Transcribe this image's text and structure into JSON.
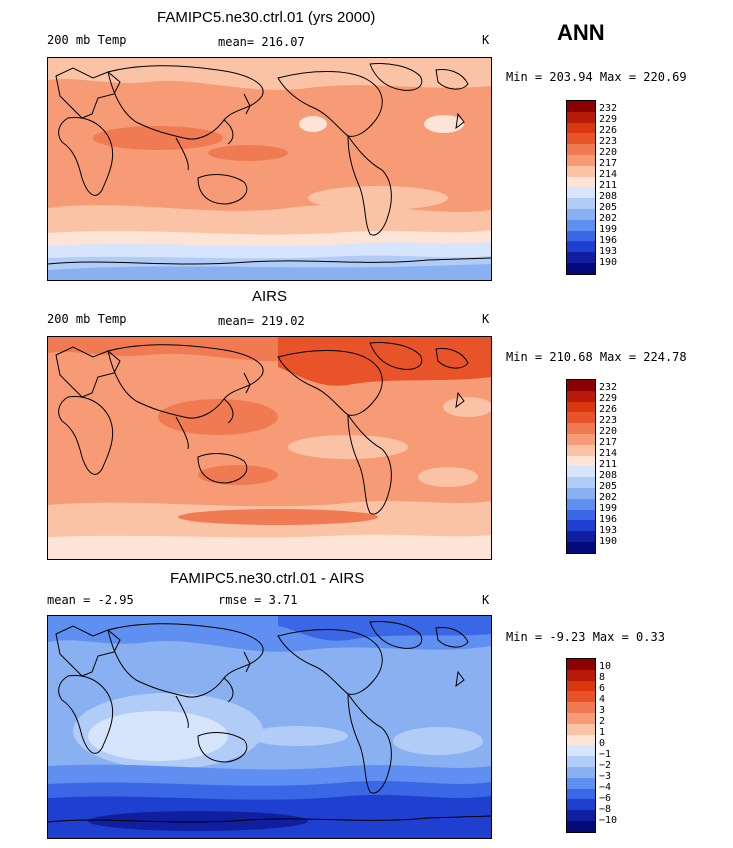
{
  "season": "ANN",
  "panels": [
    {
      "title": "FAMIPC5.ne30.ctrl.01 (yrs 2000)",
      "left_label": "200 mb Temp",
      "center_label": "mean= 216.07",
      "unit": "K",
      "minmax": "Min = 203.94 Max = 220.69",
      "levels": [
        "232",
        "229",
        "226",
        "223",
        "220",
        "217",
        "214",
        "211",
        "208",
        "205",
        "202",
        "199",
        "196",
        "193",
        "190"
      ]
    },
    {
      "title": "AIRS",
      "left_label": "200 mb Temp",
      "center_label": "mean= 219.02",
      "unit": "K",
      "minmax": "Min = 210.68 Max = 224.78",
      "levels": [
        "232",
        "229",
        "226",
        "223",
        "220",
        "217",
        "214",
        "211",
        "208",
        "205",
        "202",
        "199",
        "196",
        "193",
        "190"
      ]
    },
    {
      "title": "FAMIPC5.ne30.ctrl.01 - AIRS",
      "left_label": "mean =   -2.95",
      "center_label": "rmse =    3.71",
      "unit": "K",
      "minmax": "Min =  -9.23 Max =   0.33",
      "levels": [
        "10",
        "8",
        "6",
        "4",
        "3",
        "2",
        "1",
        "0",
        "−1",
        "−2",
        "−3",
        "−4",
        "−6",
        "−8",
        "−10"
      ]
    }
  ],
  "colors": {
    "scale": [
      "#8b0000",
      "#b81a0a",
      "#d9380f",
      "#e8532a",
      "#f07b52",
      "#f69b76",
      "#fbc3a6",
      "#fde4d6",
      "#d6e5fb",
      "#b1ccf7",
      "#89b0f1",
      "#5f8ff0",
      "#3a67e6",
      "#1f3fd1",
      "#0f1fa0",
      "#050a7a"
    ]
  },
  "chart_data": [
    {
      "type": "heatmap",
      "title": "FAMIPC5.ne30.ctrl.01 (yrs 2000)",
      "variable": "200 mb Temp",
      "unit": "K",
      "mean": 216.07,
      "min": 203.94,
      "max": 220.69,
      "contour_levels": [
        190,
        193,
        196,
        199,
        202,
        205,
        208,
        211,
        214,
        217,
        220,
        223,
        226,
        229,
        232
      ]
    },
    {
      "type": "heatmap",
      "title": "AIRS",
      "variable": "200 mb Temp",
      "unit": "K",
      "mean": 219.02,
      "min": 210.68,
      "max": 224.78,
      "contour_levels": [
        190,
        193,
        196,
        199,
        202,
        205,
        208,
        211,
        214,
        217,
        220,
        223,
        226,
        229,
        232
      ]
    },
    {
      "type": "heatmap",
      "title": "FAMIPC5.ne30.ctrl.01 - AIRS",
      "unit": "K",
      "mean": -2.95,
      "rmse": 3.71,
      "min": -9.23,
      "max": 0.33,
      "contour_levels": [
        -10,
        -8,
        -6,
        -4,
        -3,
        -2,
        -1,
        0,
        1,
        2,
        3,
        4,
        6,
        8,
        10
      ]
    }
  ]
}
